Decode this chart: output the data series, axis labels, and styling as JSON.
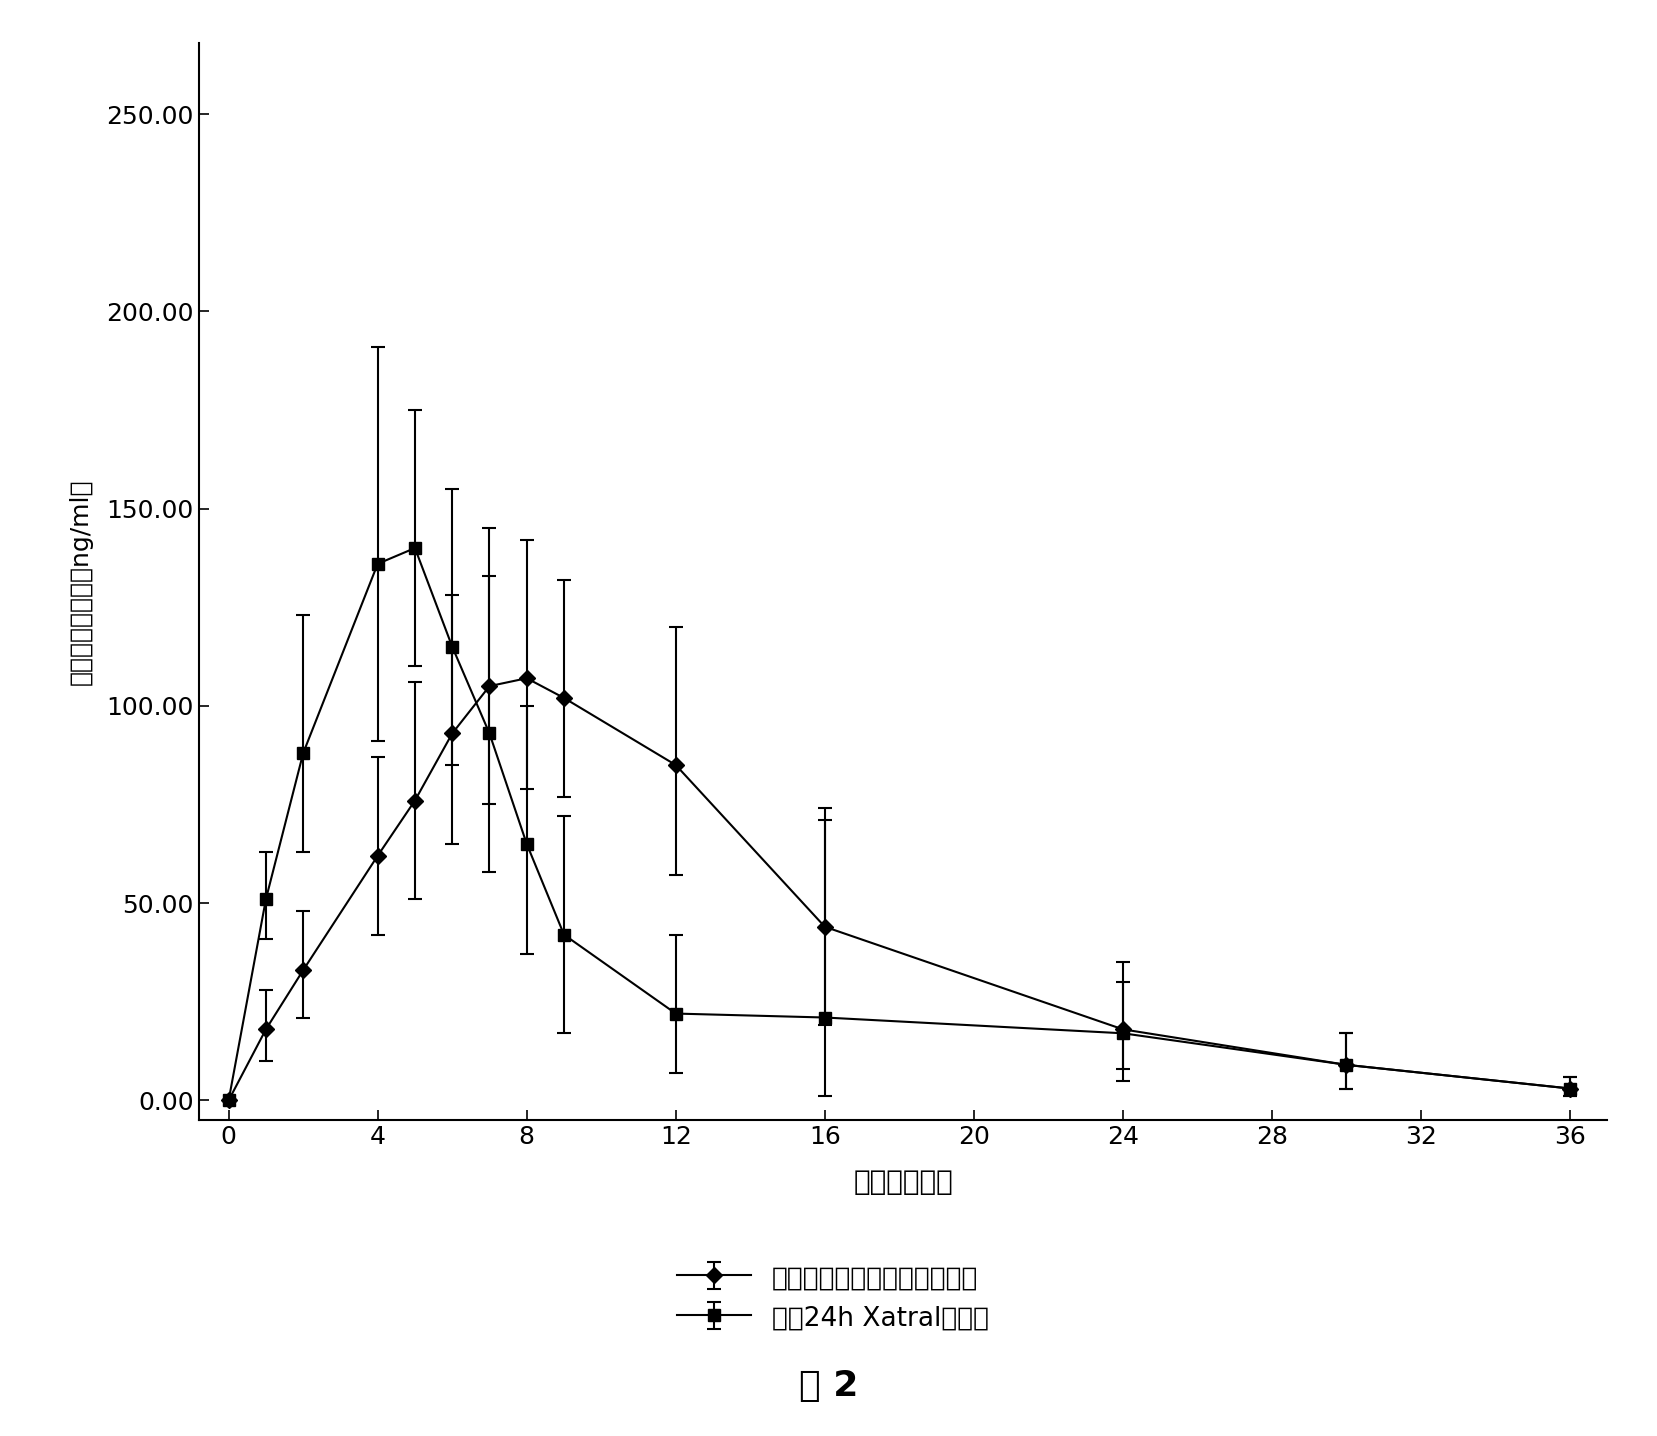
{
  "title": "图 2",
  "xlabel": "时间（小时）",
  "ylabel": "、平均血药浓度（ng/ml）",
  "xlim": [
    0,
    36
  ],
  "ylim": [
    0,
    260
  ],
  "xticks": [
    0,
    4,
    8,
    12,
    16,
    20,
    24,
    28,
    32,
    36
  ],
  "yticks": [
    0.0,
    50.0,
    100.0,
    150.0,
    200.0,
    250.0
  ],
  "series1_label": "盐酸阿夫唠嚅滲透泵型控释片",
  "series2_label": "市售24h Xatral缓释片",
  "series1_x": [
    0,
    1,
    2,
    4,
    5,
    6,
    7,
    8,
    9,
    12,
    16,
    24,
    30,
    36
  ],
  "series1_y": [
    0,
    18,
    33,
    62,
    76,
    93,
    105,
    107,
    102,
    85,
    44,
    18,
    9,
    3
  ],
  "series1_yerr_up": [
    0,
    10,
    15,
    25,
    30,
    35,
    40,
    35,
    30,
    35,
    30,
    12,
    8,
    3
  ],
  "series1_yerr_dn": [
    0,
    8,
    12,
    20,
    25,
    28,
    30,
    28,
    25,
    28,
    25,
    10,
    6,
    2
  ],
  "series2_x": [
    0,
    1,
    2,
    4,
    5,
    6,
    7,
    8,
    9,
    12,
    16,
    24,
    30,
    36
  ],
  "series2_y": [
    0,
    51,
    88,
    136,
    140,
    115,
    93,
    65,
    42,
    22,
    21,
    17,
    9,
    3
  ],
  "series2_yerr_up": [
    0,
    12,
    35,
    55,
    35,
    40,
    40,
    35,
    30,
    20,
    50,
    18,
    8,
    3
  ],
  "series2_yerr_dn": [
    0,
    10,
    25,
    45,
    30,
    30,
    35,
    28,
    25,
    15,
    20,
    12,
    6,
    2
  ],
  "line_color": "#000000",
  "background_color": "#ffffff",
  "figsize": [
    16.57,
    14.36
  ],
  "dpi": 100
}
